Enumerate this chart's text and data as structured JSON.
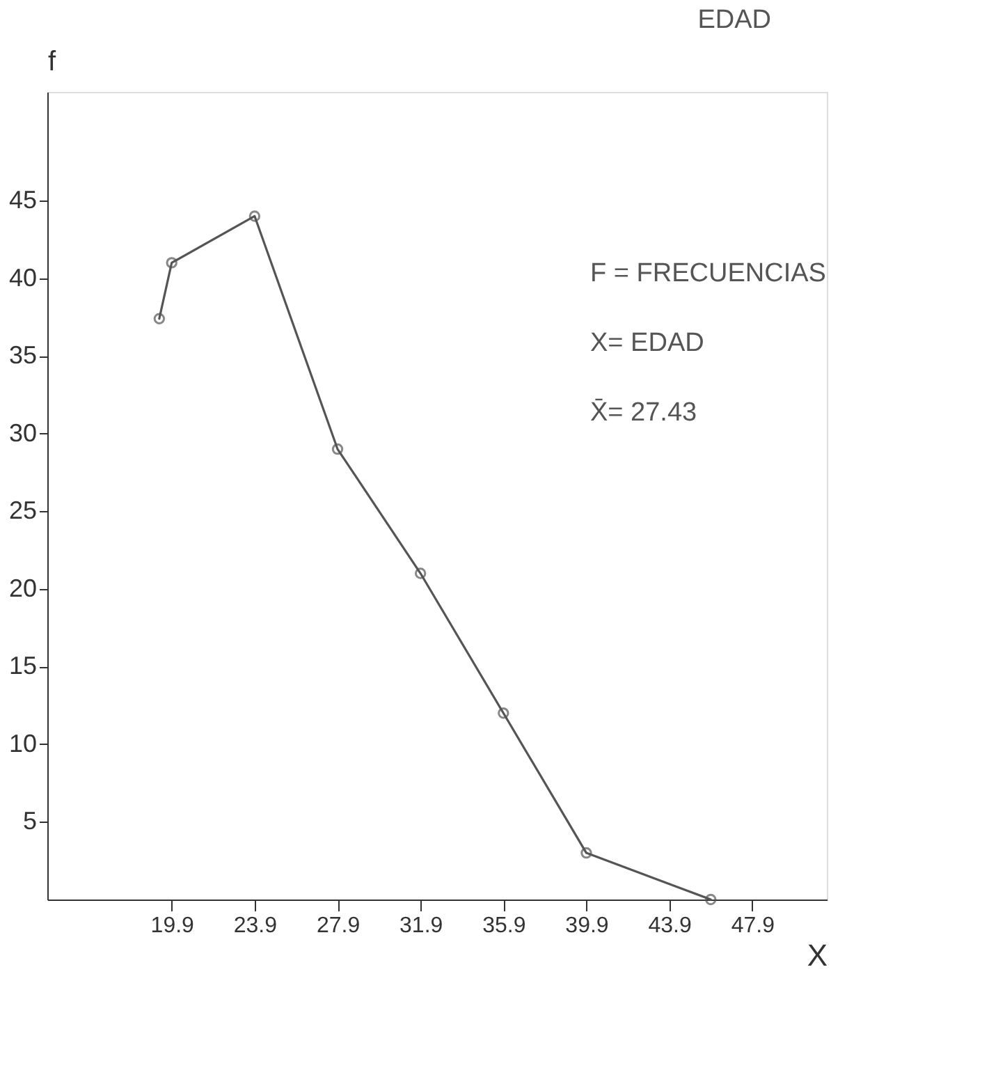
{
  "chart_data": {
    "type": "line",
    "title": "EDAD",
    "xlabel": "X",
    "ylabel": "f",
    "x": [
      19.3,
      19.9,
      23.9,
      27.9,
      31.9,
      35.9,
      39.9,
      45.9
    ],
    "series": [
      {
        "color": "#555555",
        "values": [
          37.4,
          41,
          44,
          29,
          21,
          12,
          3,
          0
        ]
      }
    ],
    "xlim": [
      13.9,
      51.5
    ],
    "xticks": [
      19.9,
      23.9,
      27.9,
      31.9,
      35.9,
      39.9,
      43.9,
      47.9
    ],
    "ylim": [
      0,
      52
    ],
    "yticks": [
      5,
      10,
      15,
      20,
      25,
      30,
      35,
      40,
      45
    ],
    "marker": "circle",
    "line_style": "solid",
    "grid": false,
    "annotations": [
      "F = FRECUENCIAS",
      "X= EDAD",
      "X̄= 27.43"
    ]
  }
}
